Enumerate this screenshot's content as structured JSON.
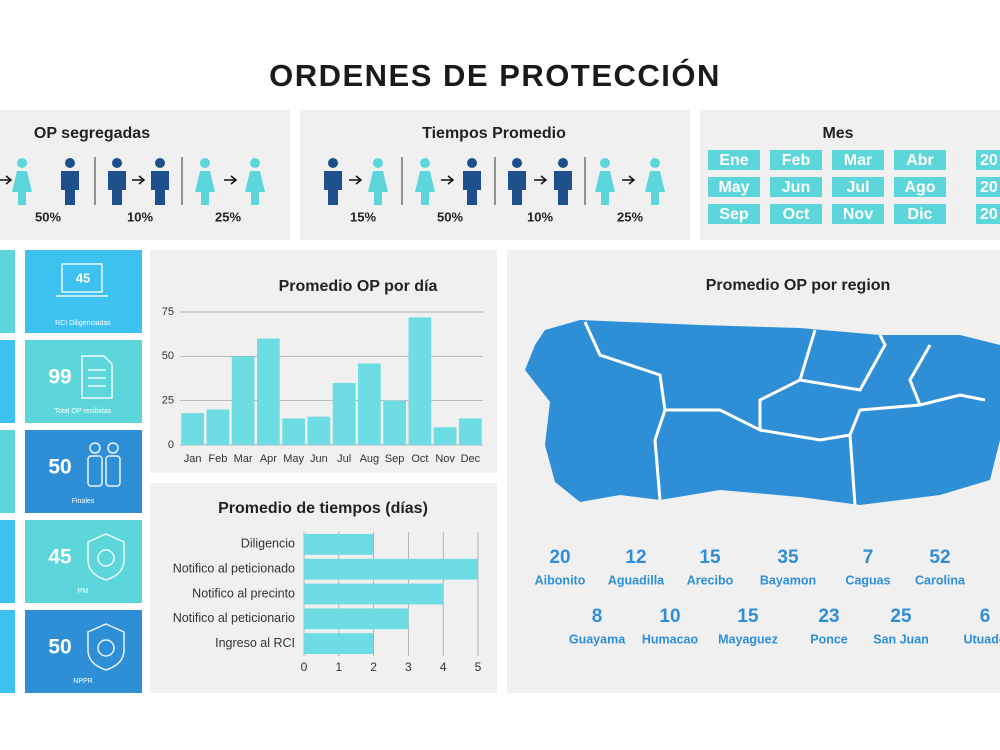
{
  "title": "ORDENES DE PROTECCIÓN",
  "op_segregadas": {
    "title": "OP segregadas",
    "percentages": [
      "50%",
      "10%",
      "25%"
    ]
  },
  "tiempos_promedio": {
    "title": "Tiempos Promedio",
    "percentages": [
      "15%",
      "50%",
      "10%",
      "25%"
    ]
  },
  "mes": {
    "title": "Mes",
    "months": [
      "Ene",
      "Feb",
      "Mar",
      "Abr",
      "May",
      "Jun",
      "Jul",
      "Ago",
      "Sep",
      "Oct",
      "Nov",
      "Dic"
    ],
    "years": [
      "20",
      "20",
      "20"
    ]
  },
  "kpis": [
    {
      "value": 45,
      "label": "RCI Diligenciadas"
    },
    {
      "value": 99,
      "label": "Total OP recibidas"
    },
    {
      "value": 50,
      "label": "Finales"
    },
    {
      "value": 45,
      "label": "PM"
    },
    {
      "value": 50,
      "label": "NPPR"
    }
  ],
  "chart_data": [
    {
      "type": "bar",
      "title": "Promedio OP por día",
      "categories": [
        "Jan",
        "Feb",
        "Mar",
        "Apr",
        "May",
        "Jun",
        "Jul",
        "Aug",
        "Sep",
        "Oct",
        "Nov",
        "Dec"
      ],
      "values": [
        18,
        20,
        50,
        60,
        15,
        16,
        35,
        46,
        25,
        72,
        10,
        15
      ],
      "color": "#6ddde3",
      "ylim": [
        0,
        75
      ],
      "yticks": [
        0,
        25,
        50,
        75
      ],
      "grid": true
    },
    {
      "type": "barh",
      "title": "Promedio de tiempos (días)",
      "categories": [
        "Diligencio",
        "Notifico al peticionado",
        "Notifico al precinto",
        "Notifico al peticionario",
        "Ingreso al RCI"
      ],
      "values": [
        2,
        5,
        4,
        3,
        2
      ],
      "color": "#6ddde3",
      "xlim": [
        0,
        5
      ],
      "xticks": [
        0,
        1,
        2,
        3,
        4,
        5
      ],
      "grid": true
    }
  ],
  "regions": {
    "title": "Promedio OP por region",
    "items": [
      {
        "value": 20,
        "name": "Aibonito"
      },
      {
        "value": 12,
        "name": "Aguadilla"
      },
      {
        "value": 15,
        "name": "Arecibo"
      },
      {
        "value": 35,
        "name": "Bayamon"
      },
      {
        "value": 7,
        "name": "Caguas"
      },
      {
        "value": 52,
        "name": "Carolina"
      },
      {
        "value": 8,
        "name": "Guayama"
      },
      {
        "value": 10,
        "name": "Humacao"
      },
      {
        "value": 15,
        "name": "Mayaguez"
      },
      {
        "value": 23,
        "name": "Ponce"
      },
      {
        "value": 25,
        "name": "San Juan"
      },
      {
        "value": 6,
        "name": "Utuado"
      }
    ]
  }
}
